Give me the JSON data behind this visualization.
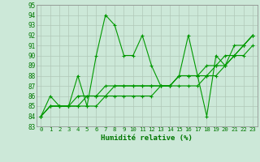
{
  "xlabel": "Humidité relative (%)",
  "bg_color": "#cce8d8",
  "grid_color": "#b0c8b8",
  "line_color": "#009900",
  "text_color": "#007700",
  "xlim": [
    -0.5,
    23.5
  ],
  "ylim": [
    83,
    95
  ],
  "xticks": [
    0,
    1,
    2,
    3,
    4,
    5,
    6,
    7,
    8,
    9,
    10,
    11,
    12,
    13,
    14,
    15,
    16,
    17,
    18,
    19,
    20,
    21,
    22,
    23
  ],
  "yticks": [
    83,
    84,
    85,
    86,
    87,
    88,
    89,
    90,
    91,
    92,
    93,
    94,
    95
  ],
  "series": [
    [
      84,
      86,
      85,
      85,
      88,
      85,
      90,
      94,
      93,
      90,
      90,
      92,
      89,
      87,
      87,
      88,
      92,
      88,
      84,
      90,
      89,
      91,
      91,
      92
    ],
    [
      84,
      85,
      85,
      85,
      86,
      86,
      86,
      87,
      87,
      87,
      87,
      87,
      87,
      87,
      87,
      88,
      88,
      88,
      88,
      89,
      89,
      90,
      90,
      91
    ],
    [
      84,
      85,
      85,
      85,
      85,
      86,
      86,
      86,
      87,
      87,
      87,
      87,
      87,
      87,
      87,
      88,
      88,
      88,
      89,
      89,
      90,
      90,
      91,
      92
    ],
    [
      84,
      85,
      85,
      85,
      85,
      85,
      85,
      86,
      86,
      86,
      86,
      86,
      86,
      87,
      87,
      87,
      87,
      87,
      88,
      88,
      89,
      90,
      91,
      92
    ]
  ]
}
